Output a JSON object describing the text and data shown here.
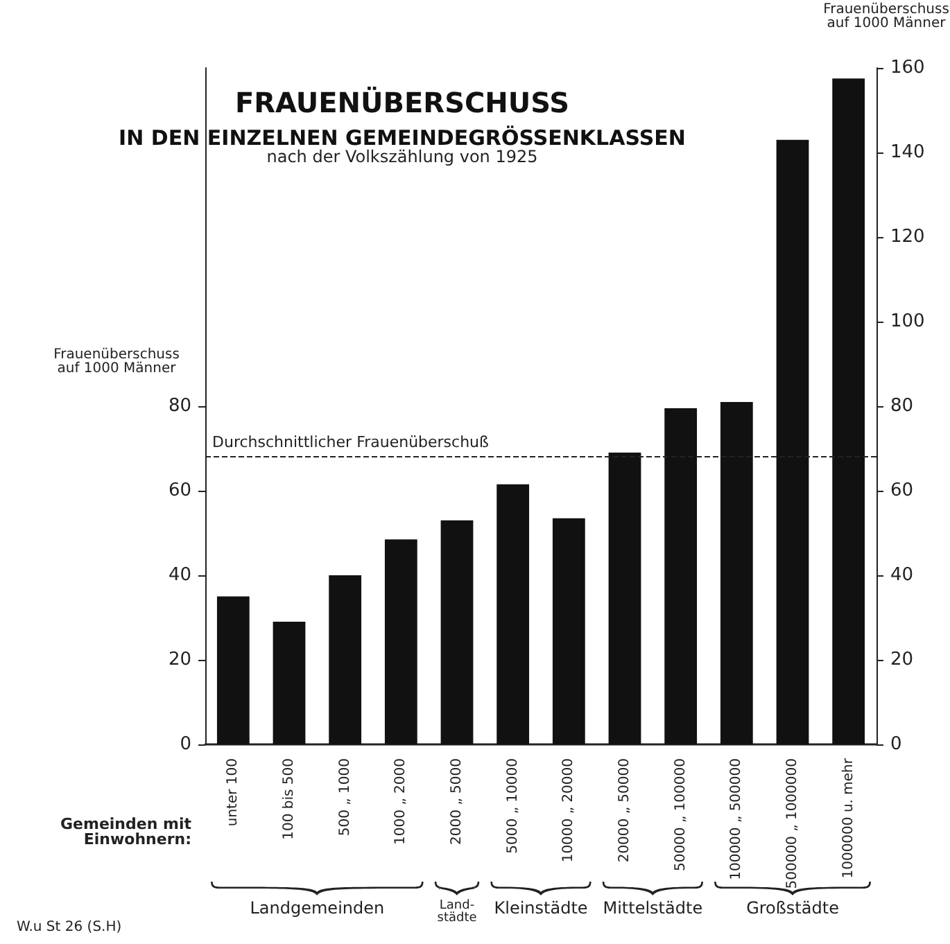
{
  "chart_data": {
    "type": "bar",
    "title": "FRAUENÜBERSCHUSS\nIN DEN EINZELNEN GEMEINDEGRÖSSENKLASSEN",
    "subtitle": "nach der Volkszählung von 1925",
    "categories": [
      "unter 100",
      "100 bis 500",
      "500 „ 1000",
      "1000 „ 2000",
      "2000 „ 5000",
      "5000 „ 10000",
      "10000 „ 20000",
      "20000 „ 50000",
      "50000 „ 100000",
      "100000 „ 500000",
      "500000 „ 1000000",
      "1000000 u. mehr"
    ],
    "values": [
      35,
      29,
      40,
      48.5,
      53,
      61.5,
      53.5,
      69,
      79.5,
      81,
      143,
      157.5
    ],
    "color": "#111111",
    "ylabel": "Frauenüberschuss\nauf 1000 Männer",
    "y2label": "Frauenüberschuss\nauf 1000 Männer",
    "ylim": [
      0,
      160
    ],
    "yticks": [
      0,
      20,
      40,
      60,
      80
    ],
    "y2lim": [
      0,
      160
    ],
    "y2ticks": [
      0,
      20,
      40,
      60,
      80,
      100,
      120,
      140,
      160
    ],
    "ref_lines": [
      {
        "axis": "y",
        "value": 68,
        "label": "Durchschnittlicher Frauenüberschuß",
        "line_style": "dashed",
        "color": "#222222"
      }
    ],
    "annotations": [
      "Gemeinden mit\nEinwohnern:",
      "Landgemeinden",
      "Land-\nstädte",
      "Kleinstädte",
      "Mittelstädte",
      "Großstädte",
      "W.u St 26 (S.H)"
    ],
    "grid": false
  }
}
